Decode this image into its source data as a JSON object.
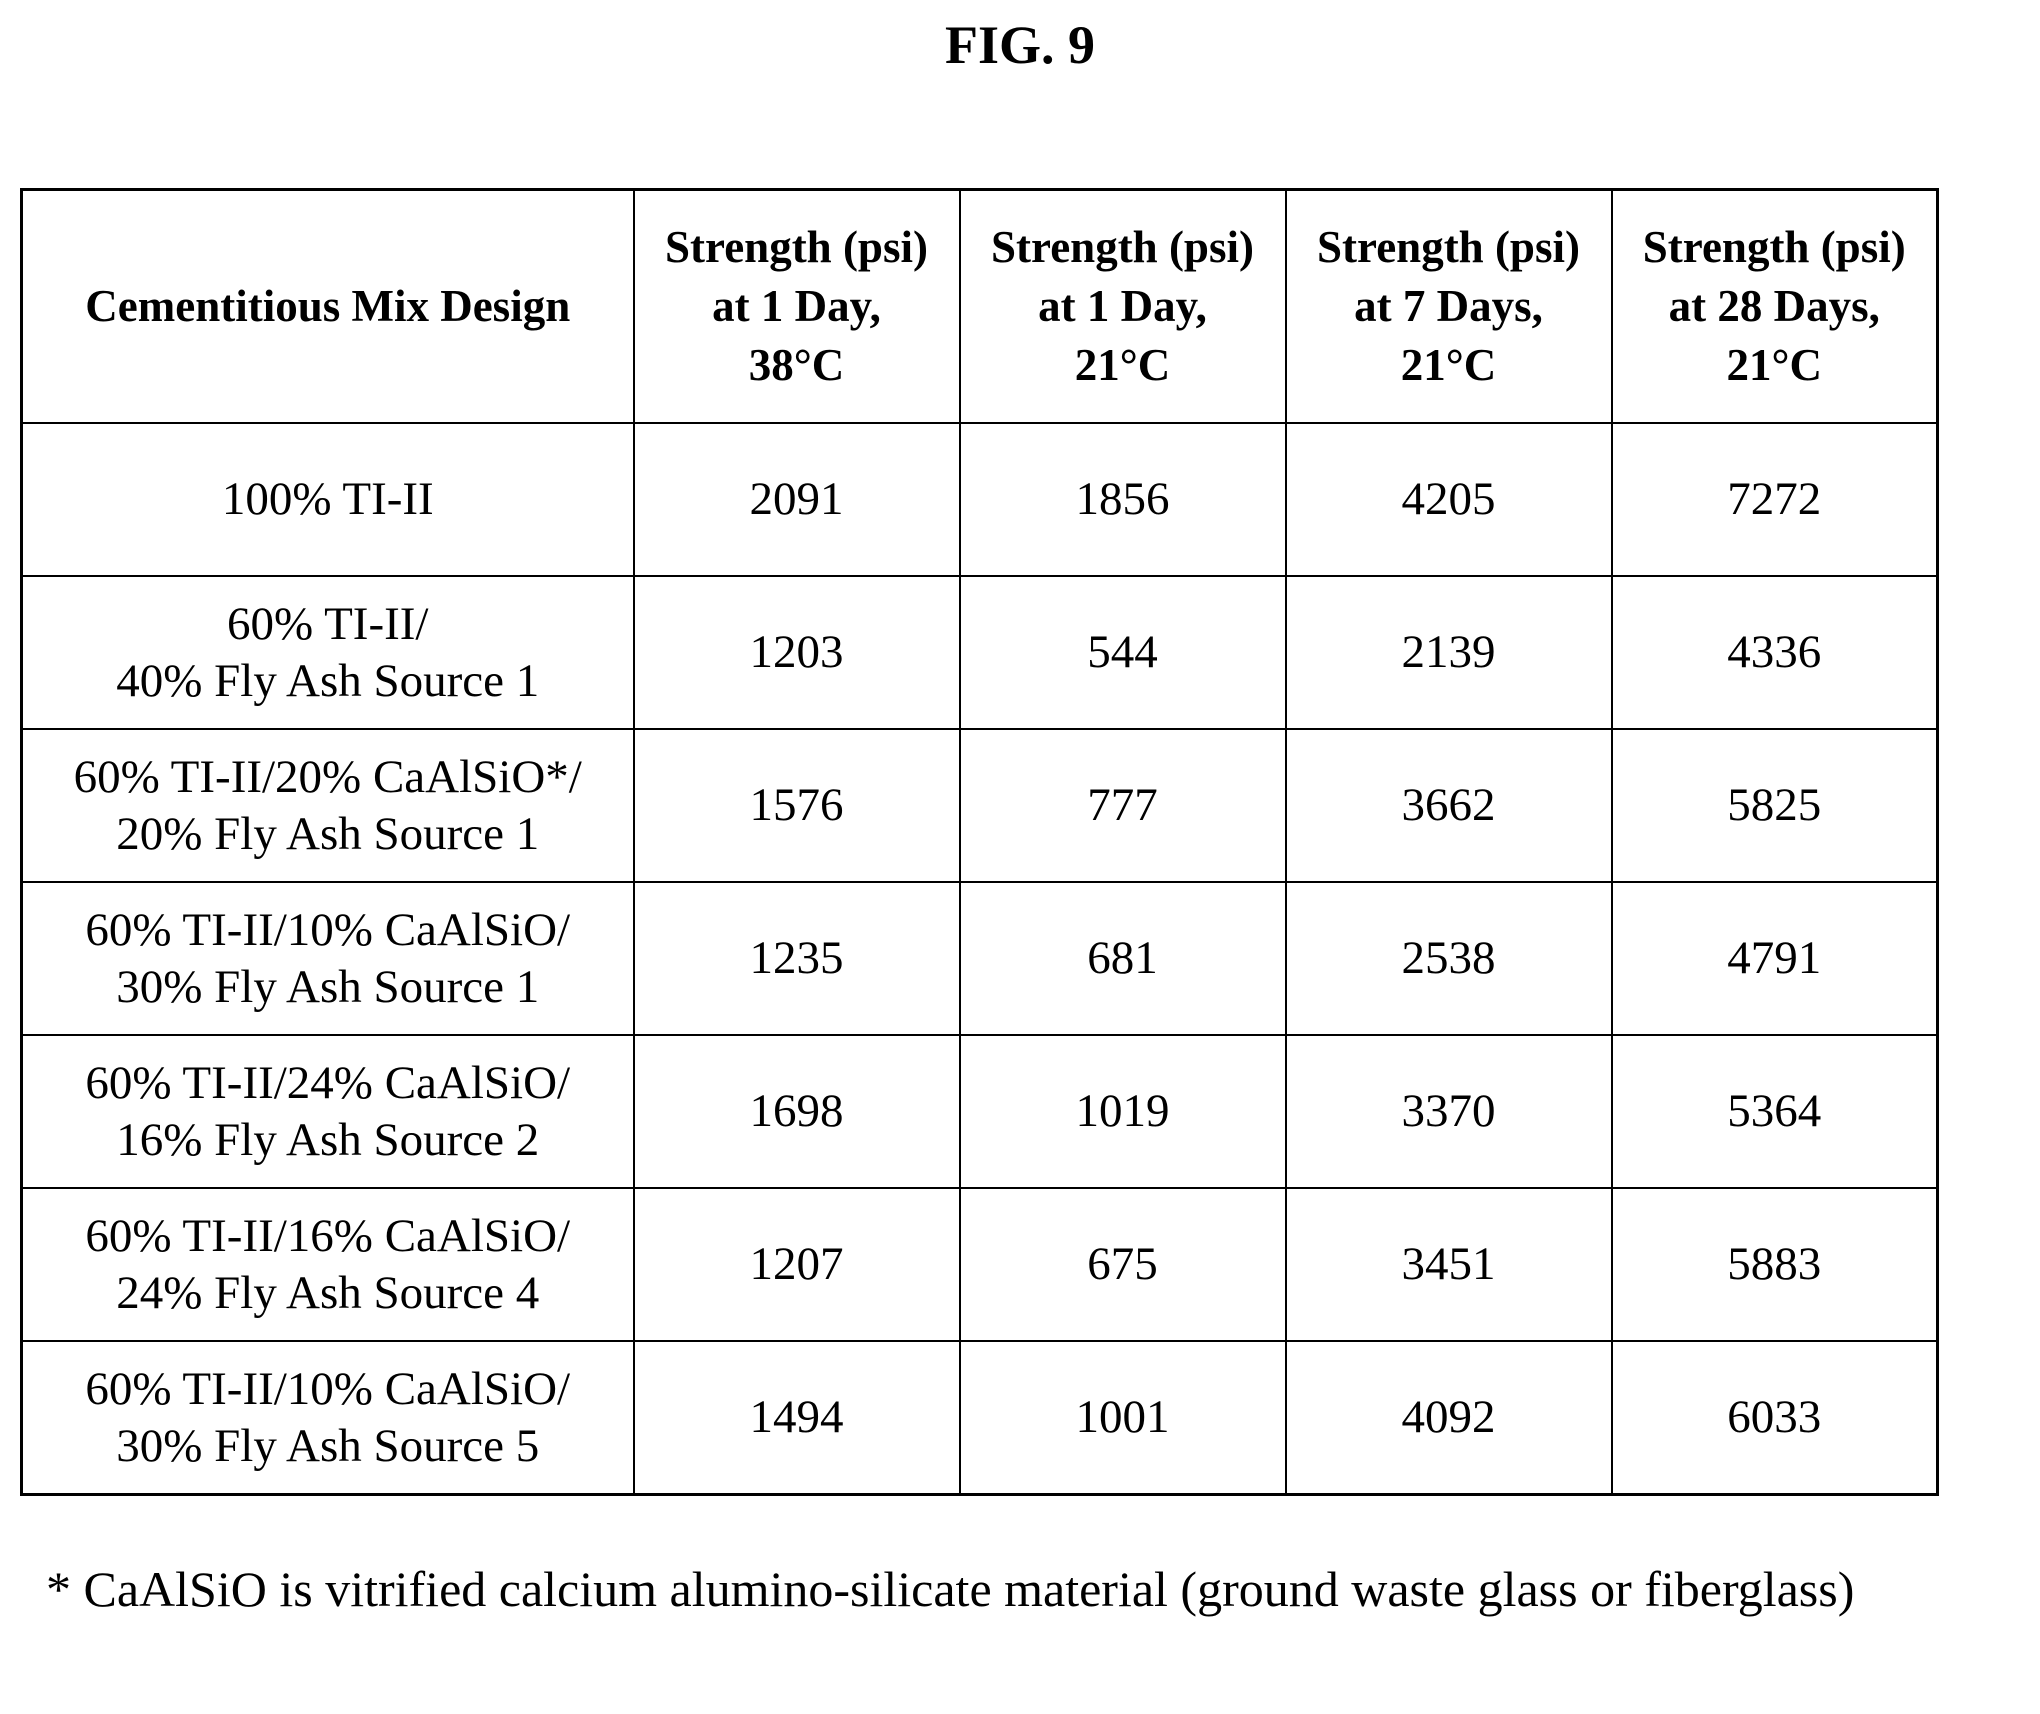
{
  "figure": {
    "title": "FIG. 9"
  },
  "table": {
    "headers": [
      {
        "lines": [
          "Cementitious Mix Design"
        ]
      },
      {
        "lines": [
          "Strength (psi)",
          "at 1 Day,",
          "38°C"
        ]
      },
      {
        "lines": [
          "Strength (psi)",
          "at 1 Day,",
          "21°C"
        ]
      },
      {
        "lines": [
          "Strength (psi)",
          "at 7 Days,",
          "21°C"
        ]
      },
      {
        "lines": [
          "Strength (psi)",
          "at 28 Days,",
          "21°C"
        ]
      }
    ],
    "rows": [
      {
        "mix": [
          "100% TI-II"
        ],
        "values": [
          "2091",
          "1856",
          "4205",
          "7272"
        ]
      },
      {
        "mix": [
          "60% TI-II/",
          "40% Fly Ash Source 1"
        ],
        "values": [
          "1203",
          "544",
          "2139",
          "4336"
        ]
      },
      {
        "mix": [
          "60% TI-II/20% CaAlSiO*/",
          "20% Fly Ash Source 1"
        ],
        "values": [
          "1576",
          "777",
          "3662",
          "5825"
        ]
      },
      {
        "mix": [
          "60% TI-II/10% CaAlSiO/",
          "30% Fly Ash Source 1"
        ],
        "values": [
          "1235",
          "681",
          "2538",
          "4791"
        ]
      },
      {
        "mix": [
          "60% TI-II/24% CaAlSiO/",
          "16% Fly Ash Source 2"
        ],
        "values": [
          "1698",
          "1019",
          "3370",
          "5364"
        ]
      },
      {
        "mix": [
          "60% TI-II/16% CaAlSiO/",
          "24% Fly Ash Source 4"
        ],
        "values": [
          "1207",
          "675",
          "3451",
          "5883"
        ]
      },
      {
        "mix": [
          "60% TI-II/10% CaAlSiO/",
          "30% Fly Ash Source 5"
        ],
        "values": [
          "1494",
          "1001",
          "4092",
          "6033"
        ]
      }
    ]
  },
  "footnote": {
    "text": "* CaAlSiO is vitrified calcium alumino-silicate material (ground waste glass or fiberglass)"
  }
}
